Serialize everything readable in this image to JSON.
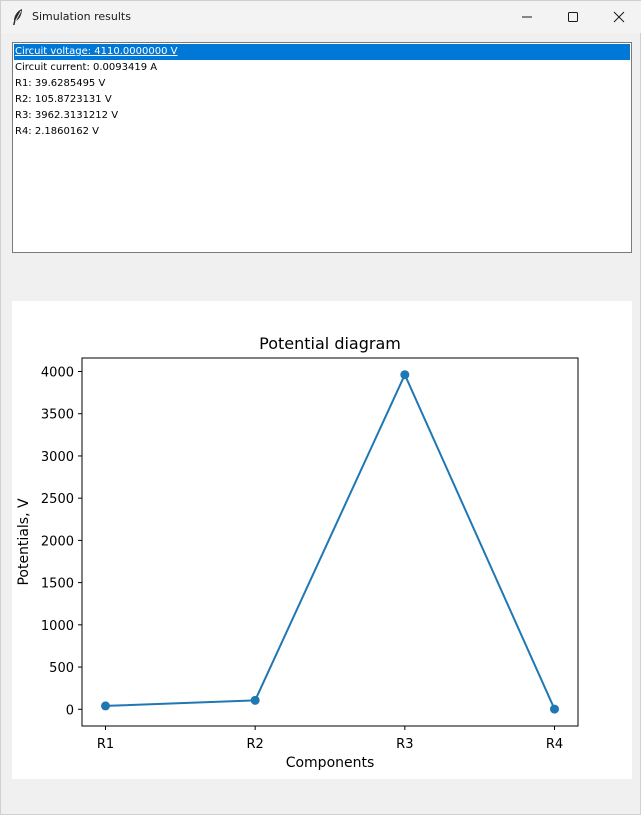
{
  "window": {
    "title": "Simulation results"
  },
  "results": {
    "items": [
      "Circuit voltage: 4110.0000000 V",
      "Circuit current: 0.0093419 A",
      "R1: 39.6285495 V",
      "R2: 105.8723131 V",
      "R3: 3962.3131212 V",
      "R4: 2.1860162 V"
    ],
    "selected_index": 0
  },
  "chart_data": {
    "type": "line",
    "title": "Potential diagram",
    "xlabel": "Components",
    "ylabel": "Potentials, V",
    "categories": [
      "R1",
      "R2",
      "R3",
      "R4"
    ],
    "values": [
      39.6285495,
      105.8723131,
      3962.3131212,
      2.1860162
    ],
    "yticks": [
      0,
      500,
      1000,
      1500,
      2000,
      2500,
      3000,
      3500,
      4000
    ],
    "ylim": [
      -198,
      4160
    ],
    "color": "#1f77b4",
    "markers": true,
    "grid": false
  },
  "colors": {
    "selection": "#0078d7",
    "series": "#1f77b4"
  }
}
